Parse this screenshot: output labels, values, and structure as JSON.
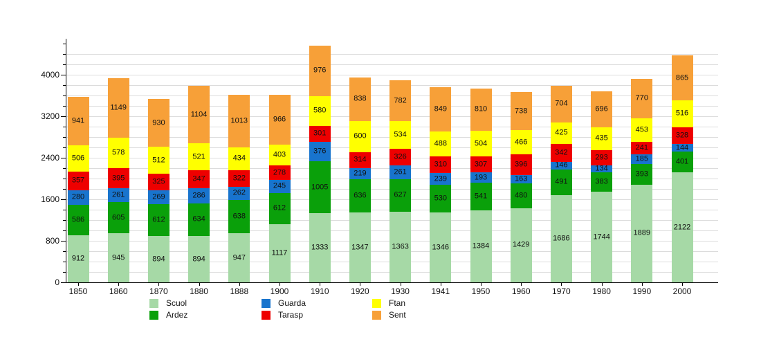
{
  "chart_data": {
    "type": "bar",
    "stacked": true,
    "title": "",
    "xlabel": "",
    "ylabel": "",
    "categories": [
      "1850",
      "1860",
      "1870",
      "1880",
      "1888",
      "1900",
      "1910",
      "1920",
      "1930",
      "1941",
      "1950",
      "1960",
      "1970",
      "1980",
      "1990",
      "2000"
    ],
    "series": [
      {
        "name": "Scuol",
        "color": "#a6d9a6",
        "values": [
          912,
          945,
          894,
          894,
          947,
          1117,
          1333,
          1347,
          1363,
          1346,
          1384,
          1429,
          1686,
          1744,
          1889,
          2122
        ]
      },
      {
        "name": "Ardez",
        "color": "#0aa00a",
        "values": [
          586,
          605,
          612,
          634,
          638,
          612,
          1005,
          636,
          627,
          530,
          541,
          480,
          491,
          383,
          393,
          401
        ]
      },
      {
        "name": "Guarda",
        "color": "#1874cd",
        "values": [
          280,
          261,
          269,
          286,
          262,
          245,
          376,
          219,
          261,
          239,
          193,
          163,
          146,
          134,
          185,
          144
        ]
      },
      {
        "name": "Tarasp",
        "color": "#ee0000",
        "values": [
          357,
          395,
          325,
          347,
          322,
          278,
          301,
          314,
          326,
          310,
          307,
          396,
          342,
          293,
          241,
          328
        ]
      },
      {
        "name": "Ftan",
        "color": "#ffff00",
        "values": [
          506,
          578,
          512,
          521,
          434,
          403,
          580,
          600,
          534,
          488,
          504,
          466,
          425,
          435,
          453,
          516
        ]
      },
      {
        "name": "Sent",
        "color": "#f7a038",
        "values": [
          941,
          1149,
          930,
          1104,
          1013,
          966,
          976,
          838,
          782,
          849,
          810,
          738,
          704,
          696,
          770,
          865
        ]
      }
    ],
    "ylim": [
      0,
      4700
    ],
    "y_major_ticks": [
      0,
      800,
      1600,
      2400,
      3200,
      4000
    ],
    "y_minor_step": 200,
    "grid": true,
    "grid_color": "#dcdcdc",
    "axis_color": "#000000",
    "label_color": "#111111",
    "legend_position": "bottom",
    "bar_value_labels": true
  }
}
